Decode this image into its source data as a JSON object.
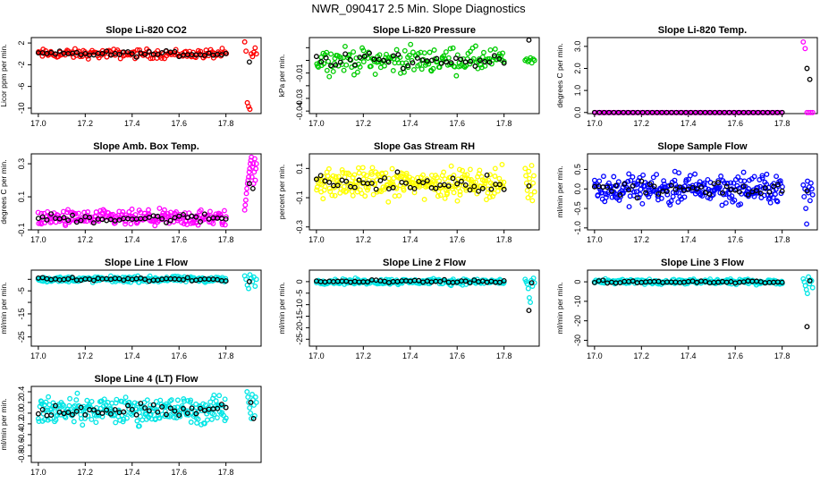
{
  "page_title": "NWR_090417  2.5 Min. Slope Diagnostics",
  "chart_data": [
    {
      "type": "scatter",
      "title": "Slope Li-820 CO2",
      "ylabel": "Licor ppm per min.",
      "color": "#ff0000",
      "xlim": [
        16.97,
        17.95
      ],
      "ylim": [
        -11,
        3
      ],
      "xticks": [
        17.0,
        17.2,
        17.4,
        17.6,
        17.8
      ],
      "xtick_labels": [
        "17.0",
        "17.2",
        "17.4",
        "17.6",
        "17.8"
      ],
      "yticks": [
        2,
        -2,
        -6,
        -10
      ],
      "ytick_labels": [
        "2",
        "-2",
        "-6",
        "-10"
      ],
      "main": {
        "x_start": 17.0,
        "x_end": 17.8,
        "center": 0,
        "spread": 0.7,
        "n": 150,
        "black_n": 45
      },
      "tail": {
        "x_start": 17.88,
        "x_end": 17.93,
        "n": 10,
        "values": [
          2.2,
          0.5,
          -9.0,
          -9.7,
          -10.2,
          0.0,
          -0.5,
          0.3,
          1.1,
          0.0
        ],
        "black": [
          -1.5
        ]
      }
    },
    {
      "type": "scatter",
      "title": "Slope Li-820 Pressure",
      "ylabel": "kPa per min.",
      "color": "#00cc00",
      "xlim": [
        16.97,
        17.95
      ],
      "ylim": [
        -0.042,
        0.018
      ],
      "xticks": [
        17.0,
        17.2,
        17.4,
        17.6,
        17.8
      ],
      "xtick_labels": [
        "17.0",
        "17.2",
        "17.4",
        "17.6",
        "17.8"
      ],
      "yticks": [
        0.01,
        0.0,
        -0.01,
        -0.02,
        -0.03,
        -0.04
      ],
      "ytick_labels": [
        "",
        "",
        "-0.01",
        "",
        "-0.03",
        "-0.04"
      ],
      "main": {
        "x_start": 17.0,
        "x_end": 17.8,
        "center": 0.0,
        "spread": 0.008,
        "n": 170,
        "black_n": 40
      },
      "tail": {
        "x_start": 17.89,
        "x_end": 17.93,
        "n": 8,
        "values": [
          0.0,
          0.001,
          -0.001,
          0.0,
          0.002,
          -0.002,
          0.001,
          0.0
        ],
        "black": [
          0.016
        ]
      }
    },
    {
      "type": "scatter",
      "title": "Slope Li-820 Temp.",
      "ylabel": "degrees C per min.",
      "color": "#ff00ff",
      "xlim": [
        16.97,
        17.95
      ],
      "ylim": [
        -0.05,
        3.4
      ],
      "xticks": [
        17.0,
        17.2,
        17.4,
        17.6,
        17.8
      ],
      "xtick_labels": [
        "17.0",
        "17.2",
        "17.4",
        "17.6",
        "17.8"
      ],
      "yticks": [
        3.0,
        2.0,
        1.0,
        0.0
      ],
      "ytick_labels": [
        "3.0",
        "2.0",
        "1.0",
        "0.0"
      ],
      "main": {
        "x_start": 17.0,
        "x_end": 17.8,
        "center": 0,
        "spread": 0.0,
        "n": 120,
        "black_n": 40
      },
      "tail": {
        "x_start": 17.89,
        "x_end": 17.93,
        "n": 6,
        "values": [
          3.2,
          2.9,
          0.0,
          0.0,
          0.0,
          0.0
        ],
        "black": [
          2.0,
          1.5
        ]
      }
    },
    {
      "type": "scatter",
      "title": "Slope Amb. Box Temp.",
      "ylabel": "degrees C per min.",
      "color": "#ff00ff",
      "xlim": [
        16.97,
        17.95
      ],
      "ylim": [
        -0.1,
        0.36
      ],
      "xticks": [
        17.0,
        17.2,
        17.4,
        17.6,
        17.8
      ],
      "xtick_labels": [
        "17.0",
        "17.2",
        "17.4",
        "17.6",
        "17.8"
      ],
      "yticks": [
        0.3,
        0.1,
        -0.1
      ],
      "ytick_labels": [
        "0.3",
        "0.1",
        "-0.1"
      ],
      "main": {
        "x_start": 17.0,
        "x_end": 17.8,
        "center": -0.03,
        "spread": 0.04,
        "n": 220,
        "black_n": 45
      },
      "tail": {
        "x_start": 17.88,
        "x_end": 17.93,
        "n": 22,
        "values": [
          0.02,
          0.05,
          0.08,
          0.12,
          0.15,
          0.18,
          0.2,
          0.22,
          0.25,
          0.27,
          0.3,
          0.32,
          0.34,
          0.22,
          0.28,
          0.3,
          0.18,
          0.25,
          0.33,
          0.2,
          0.27,
          0.3
        ],
        "black": [
          0.18,
          0.15
        ]
      }
    },
    {
      "type": "scatter",
      "title": "Slope Gas Stream RH",
      "ylabel": "percent per min.",
      "color": "#ffff00",
      "xlim": [
        16.97,
        17.95
      ],
      "ylim": [
        -0.32,
        0.2
      ],
      "xticks": [
        17.0,
        17.2,
        17.4,
        17.6,
        17.8
      ],
      "xtick_labels": [
        "17.0",
        "17.2",
        "17.4",
        "17.6",
        "17.8"
      ],
      "yticks": [
        0.1,
        -0.1,
        -0.3
      ],
      "ytick_labels": [
        "0.1",
        "-0.1",
        "-0.3"
      ],
      "main": {
        "x_start": 17.0,
        "x_end": 17.8,
        "center": 0.0,
        "spread": 0.08,
        "n": 260,
        "black_n": 45
      },
      "tail": {
        "x_start": 17.89,
        "x_end": 17.93,
        "n": 14,
        "values": [
          0.1,
          0.05,
          0.0,
          -0.05,
          -0.1,
          0.08,
          0.03,
          -0.02,
          -0.08,
          0.12,
          -0.12,
          0.0,
          0.05,
          -0.06
        ],
        "black": [
          -0.02
        ]
      }
    },
    {
      "type": "scatter",
      "title": "Slope Sample Flow",
      "ylabel": "ml/min per min.",
      "color": "#0000ff",
      "xlim": [
        16.97,
        17.95
      ],
      "ylim": [
        -1.05,
        0.9
      ],
      "xticks": [
        17.0,
        17.2,
        17.4,
        17.6,
        17.8
      ],
      "xtick_labels": [
        "17.0",
        "17.2",
        "17.4",
        "17.6",
        "17.8"
      ],
      "yticks": [
        0.5,
        0.0,
        -0.5,
        -1.0
      ],
      "ytick_labels": [
        "0.5",
        "0.0",
        "-0.5",
        "-1.0"
      ],
      "main": {
        "x_start": 17.0,
        "x_end": 17.8,
        "center": 0.0,
        "spread": 0.3,
        "n": 260,
        "black_n": 45
      },
      "tail": {
        "x_start": 17.89,
        "x_end": 17.93,
        "n": 12,
        "values": [
          0.1,
          -0.2,
          0.0,
          -0.5,
          -0.9,
          0.2,
          -0.1,
          0.05,
          -0.3,
          0.15,
          0.0,
          -0.15
        ],
        "black": [
          -0.05
        ]
      }
    },
    {
      "type": "scatter",
      "title": "Slope Line 1 Flow",
      "ylabel": "ml/min per min.",
      "color": "#00e5e5",
      "xlim": [
        16.97,
        17.95
      ],
      "ylim": [
        -29,
        4
      ],
      "xticks": [
        17.0,
        17.2,
        17.4,
        17.6,
        17.8
      ],
      "xtick_labels": [
        "17.0",
        "17.2",
        "17.4",
        "17.6",
        "17.8"
      ],
      "yticks": [
        0,
        -5,
        -10,
        -15,
        -20,
        -25
      ],
      "ytick_labels": [
        "",
        "-5",
        "",
        "-15",
        "",
        "-25"
      ],
      "main": {
        "x_start": 17.0,
        "x_end": 17.8,
        "center": 0,
        "spread": 1.0,
        "n": 220,
        "black_n": 45
      },
      "tail": {
        "x_start": 17.88,
        "x_end": 17.93,
        "n": 10,
        "values": [
          1.5,
          0.0,
          -2.5,
          -4.0,
          2.0,
          0.5,
          -1.0,
          1.0,
          -3.0,
          0.0
        ],
        "black": [
          -1.0
        ]
      }
    },
    {
      "type": "scatter",
      "title": "Slope Line 2 Flow",
      "ylabel": "ml/min per min.",
      "color": "#00e5e5",
      "xlim": [
        16.97,
        17.95
      ],
      "ylim": [
        -28,
        5
      ],
      "xticks": [
        17.0,
        17.2,
        17.4,
        17.6,
        17.8
      ],
      "xtick_labels": [
        "17.0",
        "17.2",
        "17.4",
        "17.6",
        "17.8"
      ],
      "yticks": [
        0,
        -5,
        -10,
        -15,
        -20,
        -25
      ],
      "ytick_labels": [
        "0",
        "-5",
        "-10",
        "-15",
        "-20",
        "-25"
      ],
      "main": {
        "x_start": 17.0,
        "x_end": 17.8,
        "center": 0,
        "spread": 1.0,
        "n": 220,
        "black_n": 45
      },
      "tail": {
        "x_start": 17.89,
        "x_end": 17.93,
        "n": 10,
        "values": [
          1.0,
          0.0,
          -1.0,
          -3.0,
          -7.0,
          -9.0,
          0.5,
          -2.0,
          1.5,
          -0.5
        ],
        "black": [
          -12.5,
          -0.5
        ]
      }
    },
    {
      "type": "scatter",
      "title": "Slope Line 3 Flow",
      "ylabel": "ml/min per min.",
      "color": "#00e5e5",
      "xlim": [
        16.97,
        17.95
      ],
      "ylim": [
        -33,
        6
      ],
      "xticks": [
        17.0,
        17.2,
        17.4,
        17.6,
        17.8
      ],
      "xtick_labels": [
        "17.0",
        "17.2",
        "17.4",
        "17.6",
        "17.8"
      ],
      "yticks": [
        0,
        -10,
        -20,
        -30
      ],
      "ytick_labels": [
        "0",
        "-10",
        "-20",
        "-30"
      ],
      "main": {
        "x_start": 17.0,
        "x_end": 17.8,
        "center": 0,
        "spread": 1.0,
        "n": 220,
        "black_n": 45
      },
      "tail": {
        "x_start": 17.89,
        "x_end": 17.93,
        "n": 10,
        "values": [
          1.5,
          0.0,
          -2.0,
          -4.0,
          -6.0,
          2.5,
          -1.0,
          1.0,
          0.5,
          -3.0
        ],
        "black": [
          -23.0,
          0.5
        ]
      }
    },
    {
      "type": "scatter",
      "title": "Slope Line 4 (LT) Flow",
      "ylabel": "ml/min per min.",
      "color": "#00e5e5",
      "xlim": [
        16.97,
        17.95
      ],
      "ylim": [
        -0.92,
        0.5
      ],
      "xticks": [
        17.0,
        17.2,
        17.4,
        17.6,
        17.8
      ],
      "xtick_labels": [
        "17.0",
        "17.2",
        "17.4",
        "17.6",
        "17.8"
      ],
      "yticks": [
        0.4,
        0.2,
        0.0,
        -0.2,
        -0.4,
        -0.6,
        -0.8
      ],
      "ytick_labels": [
        "0.4",
        "0.2",
        "0.0",
        "-0.2",
        "-0.4",
        "-0.6",
        "-0.8"
      ],
      "main": {
        "x_start": 17.0,
        "x_end": 17.8,
        "center": 0.05,
        "spread": 0.2,
        "n": 260,
        "black_n": 45
      },
      "tail": {
        "x_start": 17.89,
        "x_end": 17.93,
        "n": 12,
        "values": [
          0.4,
          0.3,
          0.2,
          0.1,
          0.0,
          -0.1,
          0.35,
          0.25,
          0.15,
          -0.05,
          0.3,
          0.2
        ],
        "black": [
          0.2,
          -0.1
        ]
      }
    }
  ]
}
